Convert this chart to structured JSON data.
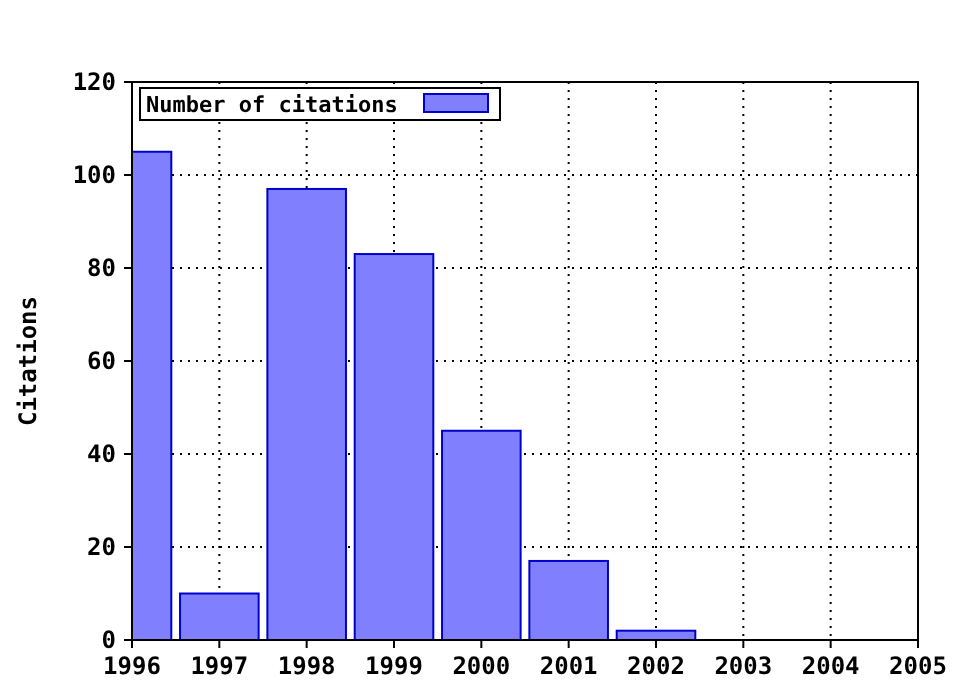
{
  "chart_data": {
    "type": "bar",
    "ylabel": "Citations",
    "x": [
      1996,
      1997,
      1998,
      1999,
      2000,
      2001,
      2002
    ],
    "series": [
      {
        "name": "Number of citations",
        "color": "#8080ff",
        "values": [
          105,
          10,
          97,
          83,
          45,
          17,
          2
        ]
      }
    ],
    "xlim": [
      1996,
      2005
    ],
    "xticks": [
      1996,
      1997,
      1998,
      1999,
      2000,
      2001,
      2002,
      2003,
      2004,
      2005
    ],
    "ylim": [
      0,
      120
    ],
    "yticks": [
      0,
      20,
      40,
      60,
      80,
      100,
      120
    ],
    "grid": true,
    "legend": "top left"
  }
}
